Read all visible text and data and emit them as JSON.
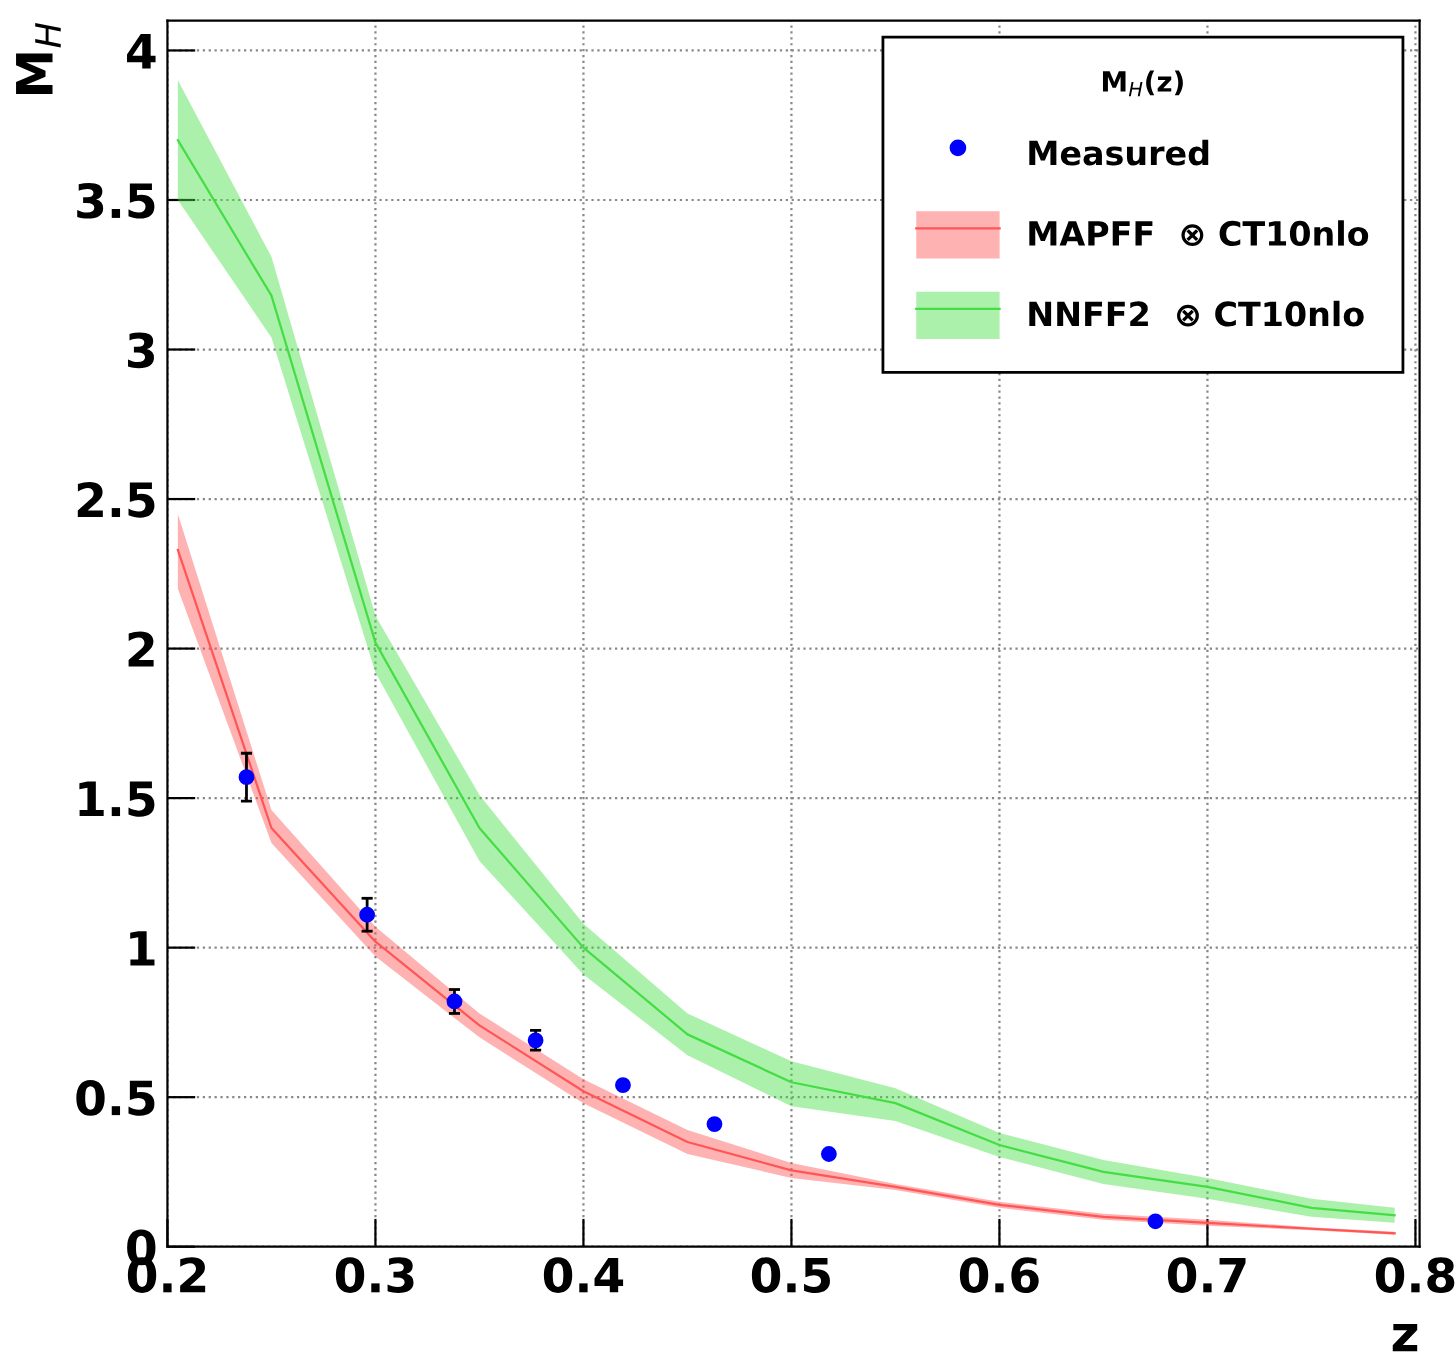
{
  "chart_data": {
    "type": "scatter",
    "xlabel": "z",
    "ylabel": "M$_{H}$",
    "legend_title": "M$_{H}$(z)",
    "xlim": [
      0.2,
      0.802
    ],
    "ylim": [
      0,
      4.1
    ],
    "xticks": [
      0.2,
      0.3,
      0.4,
      0.5,
      0.6,
      0.7,
      0.8
    ],
    "yticks": [
      0,
      0.5,
      1,
      1.5,
      2,
      2.5,
      3,
      3.5,
      4
    ],
    "grid": true,
    "legend": "top right",
    "series": [
      {
        "name": "Measured",
        "color": "#0000ff",
        "marker": "circle",
        "x": [
          0.238,
          0.296,
          0.338,
          0.377,
          0.419,
          0.463,
          0.518,
          0.675
        ],
        "values": [
          1.57,
          1.11,
          0.82,
          0.69,
          0.54,
          0.41,
          0.31,
          0.085
        ],
        "errors": [
          0.08,
          0.055,
          0.04,
          0.033,
          null,
          null,
          null,
          null
        ]
      },
      {
        "name": "MAPFF  ⊗ CT10nlo",
        "type": "line",
        "color": "#ff5555",
        "x": [
          0.205,
          0.25,
          0.3,
          0.35,
          0.4,
          0.45,
          0.5,
          0.55,
          0.6,
          0.65,
          0.7,
          0.75,
          0.79
        ],
        "values": [
          2.33,
          1.4,
          1.02,
          0.74,
          0.52,
          0.35,
          0.255,
          0.2,
          0.14,
          0.1,
          0.08,
          0.06,
          0.045
        ],
        "upper": [
          2.45,
          1.46,
          1.07,
          0.78,
          0.56,
          0.39,
          0.28,
          0.21,
          0.15,
          0.11,
          0.09,
          0.065,
          0.05
        ],
        "lower": [
          2.2,
          1.35,
          0.97,
          0.7,
          0.48,
          0.31,
          0.23,
          0.19,
          0.13,
          0.09,
          0.07,
          0.055,
          0.04
        ]
      },
      {
        "name": "NNFF2  ⊗ CT10nlo",
        "type": "line",
        "color": "#44dd44",
        "x": [
          0.205,
          0.25,
          0.3,
          0.35,
          0.4,
          0.45,
          0.5,
          0.55,
          0.6,
          0.65,
          0.7,
          0.75,
          0.79
        ],
        "values": [
          3.7,
          3.18,
          2.02,
          1.4,
          1.0,
          0.71,
          0.55,
          0.48,
          0.34,
          0.25,
          0.2,
          0.13,
          0.105
        ],
        "upper": [
          3.9,
          3.31,
          2.11,
          1.51,
          1.08,
          0.78,
          0.62,
          0.53,
          0.38,
          0.29,
          0.23,
          0.16,
          0.13
        ],
        "lower": [
          3.5,
          3.04,
          1.92,
          1.29,
          0.91,
          0.64,
          0.47,
          0.42,
          0.3,
          0.21,
          0.16,
          0.1,
          0.08
        ]
      }
    ]
  }
}
